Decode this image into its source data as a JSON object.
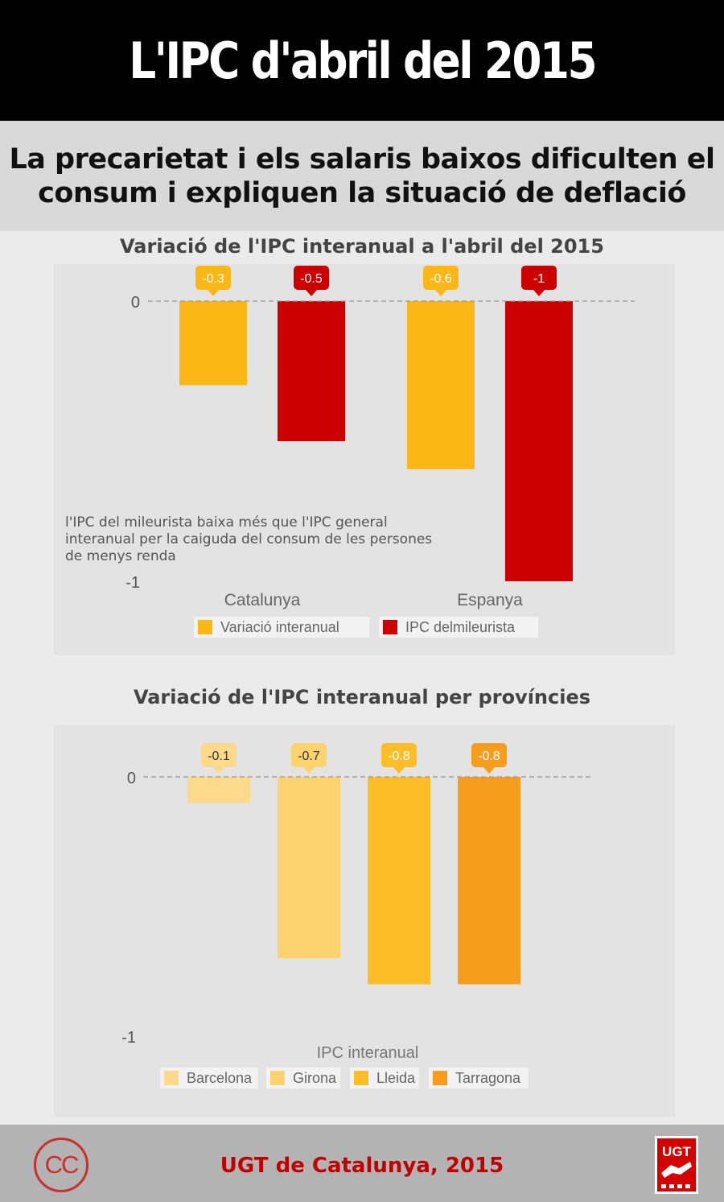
{
  "header": {
    "title": "L'IPC d'abril del 2015"
  },
  "subtitle": "La precarietat i els salaris baixos dificulten el consum i expliquen la situació de deflació",
  "colors": {
    "yellow": "#fbb715",
    "red": "#cc0000",
    "barcelona": "#fdd98b",
    "girona": "#fdd36f",
    "lleida": "#fcbd27",
    "tarragona": "#f79d1e"
  },
  "chart_data": [
    {
      "type": "bar",
      "title": "Variació de l'IPC interanual a l'abril del 2015",
      "categories": [
        "Catalunya",
        "Espanya"
      ],
      "series": [
        {
          "name": "Variació interanual",
          "values": [
            -0.3,
            -0.6
          ],
          "color": "#fbb715"
        },
        {
          "name": "IPC delmileurista",
          "values": [
            -0.5,
            -1
          ],
          "color": "#cc0000"
        }
      ],
      "yticks": [
        "0",
        "-1"
      ],
      "ylim": [
        -1,
        0
      ],
      "grid": false,
      "legend": "bottom",
      "annotation": "l'IPC del mileurista baixa més que l'IPC general interanual per la caiguda del consum de les persones de menys renda"
    },
    {
      "type": "bar",
      "title": "Variació de l'IPC interanual per províncies",
      "categories": [
        "Barcelona",
        "Girona",
        "Lleida",
        "Tarragona"
      ],
      "xlabel": "IPC interanual",
      "values": [
        -0.1,
        -0.7,
        -0.8,
        -0.8
      ],
      "colors": [
        "#fdd98b",
        "#fdd36f",
        "#fcbd27",
        "#f79d1e"
      ],
      "yticks": [
        "0",
        "-1"
      ],
      "ylim": [
        -1,
        0
      ],
      "grid": false,
      "legend": "bottom"
    }
  ],
  "footer": {
    "credit": "UGT de Catalunya, 2015",
    "cc_icon": "creative-commons-icon",
    "cc_text": "CC",
    "logo_icon": "ugt-logo",
    "logo_text": "UGT"
  }
}
